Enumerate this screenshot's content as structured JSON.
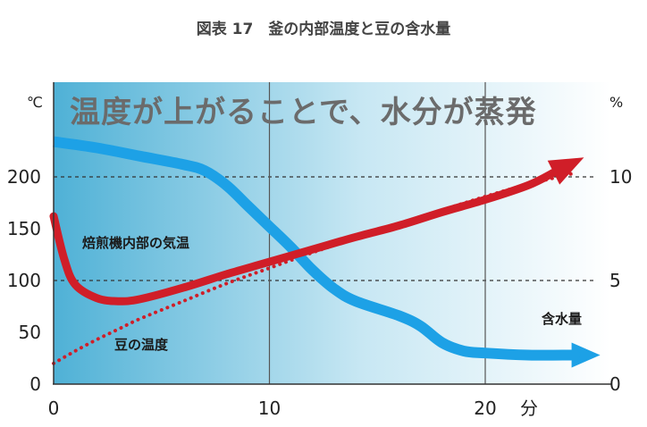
{
  "chart_data": {
    "type": "line",
    "title": "図表 17　釜の内部温度と豆の含水量",
    "headline": "温度が上がることで、水分が蒸発",
    "x_unit": "分",
    "y_left_unit": "℃",
    "y_right_unit": "%",
    "xlim": [
      0,
      25
    ],
    "ylim_left": [
      0,
      250
    ],
    "ylim_right": [
      0,
      12.5
    ],
    "x_ticks": [
      "0",
      "10",
      "20"
    ],
    "y_left_ticks": [
      "0",
      "50",
      "100",
      "150",
      "200"
    ],
    "y_right_ticks": [
      "0",
      "5",
      "10"
    ],
    "grid": "vertical lines at 10 and 20; dashed horizontal lines at 100 and 200",
    "colors": {
      "internal_temp": "#d01e28",
      "bean_temp": "#d01e28",
      "moisture": "#1da1e6",
      "background_dark": "#4fb1d6",
      "background_light": "#ffffff"
    },
    "series": [
      {
        "name": "焙煎機内部の気温",
        "axis": "left",
        "style": "solid-arrow",
        "x": [
          0,
          0.5,
          1,
          2,
          3,
          4,
          6,
          8,
          10,
          12,
          14,
          16,
          18,
          20,
          22,
          24.5
        ],
        "y": [
          162,
          120,
          96,
          83,
          80,
          82,
          93,
          106,
          118,
          130,
          142,
          153,
          166,
          178,
          192,
          218
        ]
      },
      {
        "name": "豆の温度",
        "axis": "left",
        "style": "dotted",
        "x": [
          0,
          1,
          2,
          3,
          4,
          6,
          8,
          10,
          12,
          14,
          16,
          18,
          20,
          22,
          24
        ],
        "y": [
          20,
          32,
          43,
          53,
          63,
          80,
          97,
          112,
          127,
          141,
          155,
          168,
          181,
          193,
          203
        ]
      },
      {
        "name": "含水量",
        "axis": "right",
        "style": "thick-arrow",
        "x": [
          0,
          2,
          4,
          6,
          7,
          8,
          9,
          10,
          11,
          12,
          13,
          14,
          16,
          17,
          18,
          19,
          20,
          22,
          24
        ],
        "y": [
          11.7,
          11.4,
          11.0,
          10.6,
          10.3,
          9.6,
          8.6,
          7.6,
          6.6,
          5.5,
          4.6,
          4.0,
          3.3,
          2.8,
          2.0,
          1.6,
          1.5,
          1.4,
          1.4
        ]
      }
    ]
  }
}
